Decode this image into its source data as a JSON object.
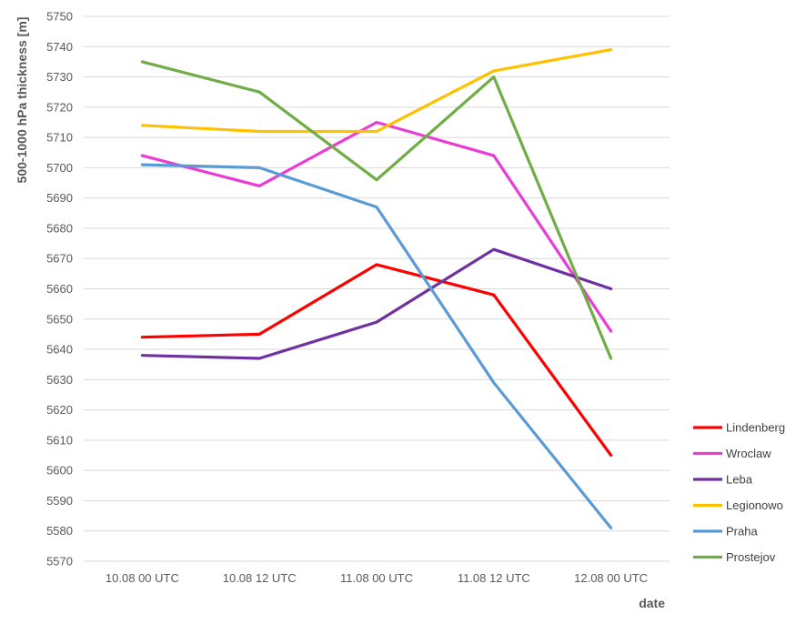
{
  "chart_data": {
    "type": "line",
    "title": "",
    "xlabel": "date",
    "ylabel": "500-1000 hPa thickness [m]",
    "categories": [
      "10.08 00 UTC",
      "10.08 12 UTC",
      "11.08 00 UTC",
      "11.08 12 UTC",
      "12.08 00 UTC"
    ],
    "ylim": [
      5570,
      5750
    ],
    "ytick_step": 10,
    "grid": true,
    "legend_position": "right",
    "series": [
      {
        "name": "Lindenberg",
        "color": "#ff0000",
        "values": [
          5644,
          5645,
          5668,
          5658,
          5605
        ]
      },
      {
        "name": "Wroclaw",
        "color": "#e83cd4",
        "values": [
          5704,
          5694,
          5715,
          5704,
          5646
        ]
      },
      {
        "name": "Leba",
        "color": "#7030a0",
        "values": [
          5638,
          5637,
          5649,
          5673,
          5660
        ]
      },
      {
        "name": "Legionowo",
        "color": "#ffc000",
        "values": [
          5714,
          5712,
          5712,
          5732,
          5739
        ]
      },
      {
        "name": "Praha",
        "color": "#5b9bd5",
        "values": [
          5701,
          5700,
          5687,
          5629,
          5581
        ]
      },
      {
        "name": "Prostejov",
        "color": "#70ad47",
        "values": [
          5735,
          5725,
          5696,
          5730,
          5637
        ]
      }
    ]
  }
}
